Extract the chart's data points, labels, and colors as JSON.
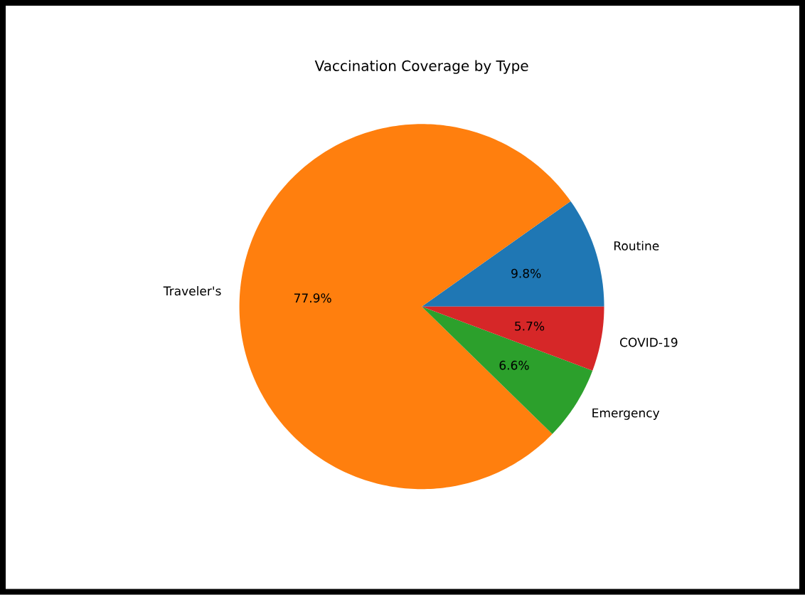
{
  "chart_data": {
    "type": "pie",
    "title": "Vaccination Coverage by Type",
    "categories": [
      "Routine",
      "Traveler's",
      "Emergency",
      "COVID-19"
    ],
    "values": [
      9.8,
      77.9,
      6.6,
      5.7
    ],
    "colors": [
      "#1f77b4",
      "#ff7f0e",
      "#2ca02c",
      "#d62728"
    ],
    "value_labels": [
      "9.8%",
      "77.9%",
      "6.6%",
      "5.7%"
    ]
  }
}
